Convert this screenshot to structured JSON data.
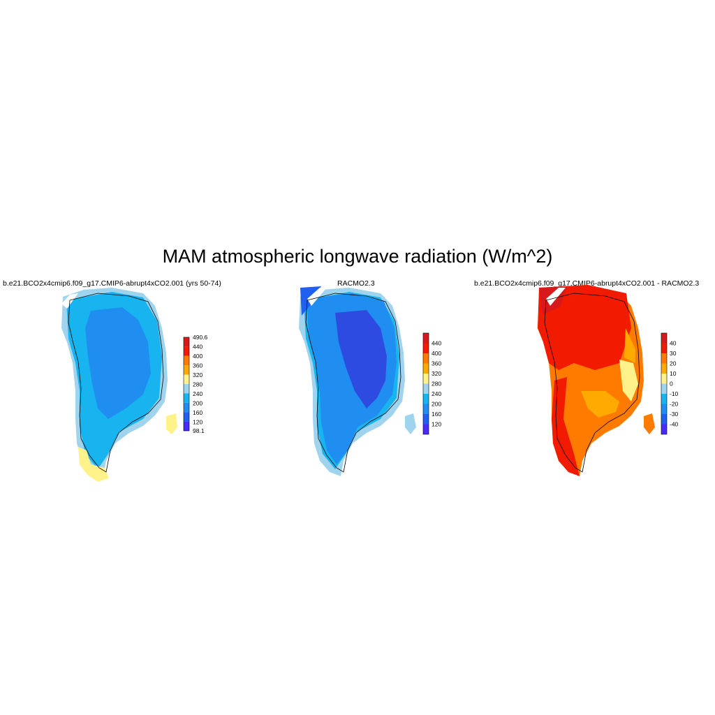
{
  "title": "MAM atmospheric longwave radiation (W/m^2)",
  "panels": [
    {
      "title": "b.e21.BCO2x4cmip6.f09_g17.CMIP6-abrupt4xCO2.001 (yrs 50-74)",
      "colorbar": {
        "labels": [
          "490.6",
          "440",
          "400",
          "360",
          "320",
          "280",
          "240",
          "200",
          "160",
          "120",
          "98.1"
        ],
        "colors": [
          "#d7191c",
          "#f21a00",
          "#ff7b00",
          "#ffaa00",
          "#fff28a",
          "#9fd3ee",
          "#18b4f0",
          "#1f8ef0",
          "#2060f0",
          "#4a2bff"
        ]
      }
    },
    {
      "title": "RACMO2.3",
      "colorbar": {
        "labels": [
          "440",
          "400",
          "360",
          "320",
          "280",
          "240",
          "200",
          "160",
          "120"
        ],
        "colors": [
          "#d7191c",
          "#f21a00",
          "#ff7b00",
          "#ffaa00",
          "#fff28a",
          "#9fd3ee",
          "#18b4f0",
          "#1f8ef0",
          "#2060f0",
          "#4a2bff"
        ]
      }
    },
    {
      "title": "b.e21.BCO2x4cmip6.f09_g17.CMIP6-abrupt4xCO2.001 - RACMO2.3",
      "colorbar": {
        "labels": [
          "40",
          "30",
          "20",
          "10",
          "0",
          "-10",
          "-20",
          "-30",
          "-40"
        ],
        "colors": [
          "#d7191c",
          "#f21a00",
          "#ff7b00",
          "#ffaa00",
          "#fff28a",
          "#9fd3ee",
          "#18b4f0",
          "#1f8ef0",
          "#2060f0",
          "#4a2bff"
        ]
      }
    }
  ]
}
